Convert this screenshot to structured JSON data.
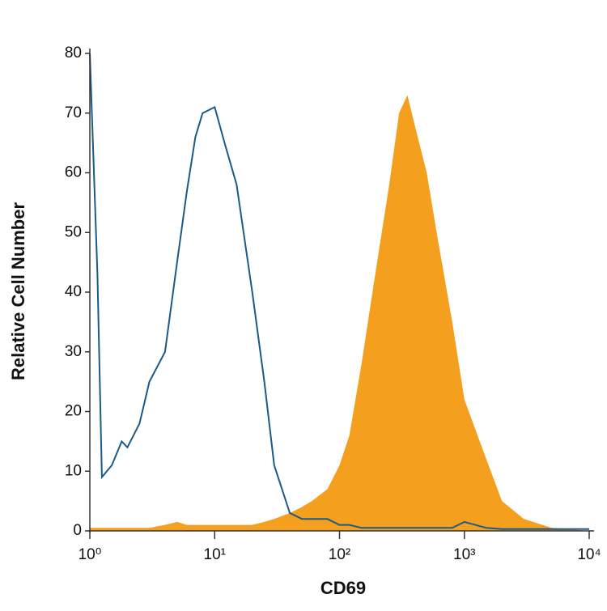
{
  "chart_data": {
    "type": "histogram-overlay",
    "x_label": "CD69",
    "y_label": "Relative Cell Number",
    "xscale": "log",
    "xlim": [
      1,
      10000
    ],
    "xticks": [
      {
        "value": 1,
        "label": "10⁰"
      },
      {
        "value": 10,
        "label": "10¹"
      },
      {
        "value": 100,
        "label": "10²"
      },
      {
        "value": 1000,
        "label": "10³"
      },
      {
        "value": 10000,
        "label": "10⁴"
      }
    ],
    "ylim": [
      0,
      80
    ],
    "yticks": [
      0,
      10,
      20,
      30,
      40,
      50,
      60,
      70,
      80
    ],
    "x": [
      1,
      1.15,
      1.25,
      1.5,
      1.8,
      2,
      2.5,
      3,
      4,
      5,
      6,
      7,
      8,
      10,
      12,
      15,
      20,
      25,
      30,
      40,
      50,
      60,
      80,
      100,
      120,
      150,
      200,
      250,
      300,
      350,
      400,
      500,
      600,
      800,
      1000,
      1500,
      2000,
      3000,
      5000,
      10000
    ],
    "series": [
      {
        "style": "filled",
        "color": "#f59f1e",
        "values": [
          0.5,
          0.5,
          0.5,
          0.5,
          0.5,
          0.5,
          0.5,
          0.5,
          1,
          1.5,
          1,
          1,
          1,
          1,
          1,
          1,
          1,
          1.5,
          2,
          3,
          4,
          5,
          7,
          11,
          16,
          28,
          45,
          58,
          70,
          73,
          68,
          60,
          50,
          35,
          22,
          12,
          5,
          2,
          0.5,
          0
        ]
      },
      {
        "style": "outline",
        "color": "#1b5a88",
        "values": [
          80,
          43,
          9,
          11,
          15,
          14,
          18,
          25,
          30,
          45,
          57,
          66,
          70,
          71,
          65,
          58,
          40,
          25,
          11,
          3,
          2,
          2,
          2,
          1,
          1,
          0.5,
          0.5,
          0.5,
          0.5,
          0.5,
          0.5,
          0.5,
          0.5,
          0.5,
          1.5,
          0.5,
          0.3,
          0.3,
          0.3,
          0.3
        ]
      }
    ]
  }
}
